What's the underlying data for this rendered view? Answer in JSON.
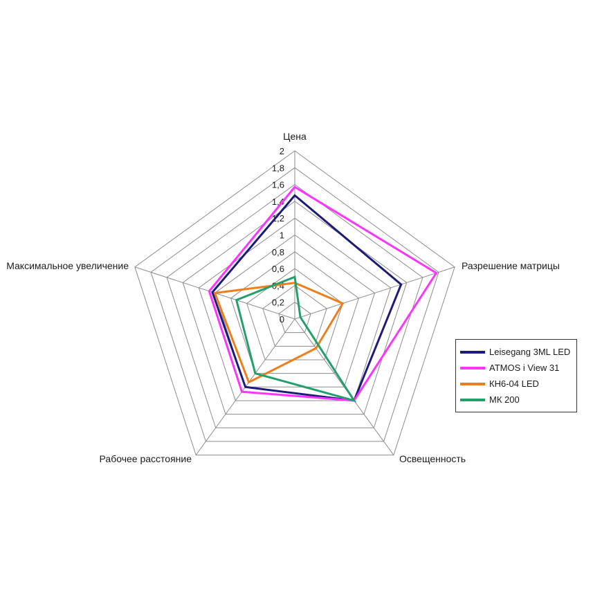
{
  "chart_data": {
    "type": "radar",
    "axes": [
      "Цена",
      "Разрешение матрицы",
      "Освещенность",
      "Рабочее расстояние",
      "Максимальное увеличение"
    ],
    "rlim": [
      0,
      2
    ],
    "ticks": [
      "0",
      "0,2",
      "0,4",
      "0,6",
      "0,8",
      "1",
      "1,2",
      "1,4",
      "1,6",
      "1,8",
      "2"
    ],
    "tick_values": [
      0,
      0.2,
      0.4,
      0.6,
      0.8,
      1,
      1.2,
      1.4,
      1.6,
      1.8,
      2
    ],
    "grid": true,
    "legend_position": "right",
    "series": [
      {
        "name": "Leisegang 3ML LED",
        "color": "#1b1b7a",
        "values": [
          1.47,
          1.33,
          1.2,
          1.0,
          1.03
        ]
      },
      {
        "name": "ATMOS i View 31",
        "color": "#ff33ff",
        "values": [
          1.57,
          1.77,
          1.2,
          1.07,
          1.07
        ]
      },
      {
        "name": "КН6-04 LED",
        "color": "#f07d1a",
        "values": [
          0.43,
          0.6,
          0.43,
          0.93,
          1.0
        ]
      },
      {
        "name": "МК 200",
        "color": "#22a06b",
        "values": [
          0.5,
          0.07,
          1.2,
          0.8,
          0.73
        ]
      }
    ]
  }
}
